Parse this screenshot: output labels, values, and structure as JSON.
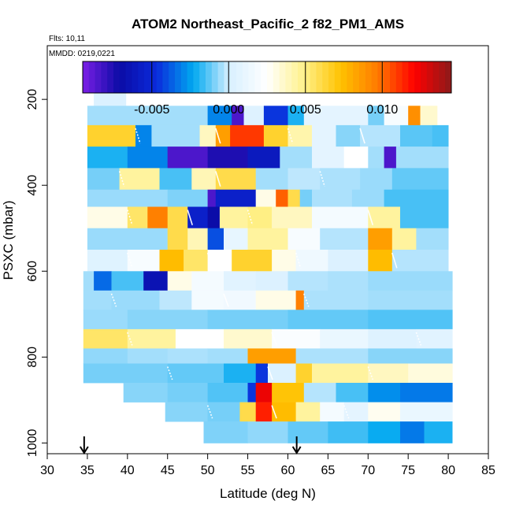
{
  "chart_data": {
    "type": "heatmap",
    "title": "ATOM2 Northeast_Pacific_2 f82_PM1_AMS",
    "flights_label": "Flts: 10,11",
    "dates_label": "MMDD: 0219,0221",
    "xlabel": "Latitude (deg N)",
    "ylabel": "PSXC (mbar)",
    "xlim": [
      30,
      85
    ],
    "ylim": [
      1025,
      75
    ],
    "x_ticks": [
      "30",
      "35",
      "40",
      "45",
      "50",
      "55",
      "60",
      "65",
      "70",
      "75",
      "80",
      "85"
    ],
    "y_ticks": [
      "200",
      "400",
      "600",
      "800",
      "1000"
    ],
    "colorbar": {
      "range": [
        -0.0095,
        0.0145
      ],
      "tick_values": [
        -0.005,
        0.0,
        0.005,
        0.01
      ],
      "tick_labels": [
        "-0.005",
        "0.000",
        "0.005",
        "0.010"
      ],
      "colors": [
        "#7b1fe6",
        "#0b0ba6",
        "#0b2bdb",
        "#00a8f0",
        "#d9f0ff",
        "#ffffff",
        "#fff18a",
        "#ffc200",
        "#ff7a00",
        "#ff0000",
        "#8b1a1a"
      ]
    },
    "arrow_markers_lat": [
      34.6,
      61.1
    ],
    "rows": [
      {
        "p_top": 175,
        "p_bot": 215,
        "segs": [
          [
            35.8,
            39.8,
            0.0002
          ]
        ]
      },
      {
        "p_top": 215,
        "p_bot": 260,
        "segs": [
          [
            35,
            50,
            -0.0005
          ],
          [
            50,
            53,
            -0.003
          ],
          [
            53,
            54.5,
            -0.0085
          ],
          [
            54.5,
            57,
            0.0004
          ],
          [
            57,
            60,
            -0.0045
          ],
          [
            60,
            62,
            -0.002
          ],
          [
            62,
            70,
            0.0008
          ],
          [
            70,
            72,
            -0.001
          ],
          [
            72,
            75,
            0.002
          ],
          [
            75,
            76.5,
            0.009
          ],
          [
            76.5,
            78.6,
            0.0035
          ]
        ]
      },
      {
        "p_top": 260,
        "p_bot": 310,
        "segs": [
          [
            35,
            41,
            0.0065
          ],
          [
            41,
            43,
            -0.003
          ],
          [
            43,
            49,
            -0.0005
          ],
          [
            49,
            51,
            0.0038
          ],
          [
            51,
            52.8,
            0.0085
          ],
          [
            52.8,
            57,
            0.011
          ],
          [
            57,
            60,
            0.0065
          ],
          [
            60,
            63,
            0.0042
          ],
          [
            63,
            66,
            0.0008
          ],
          [
            66,
            69,
            -0.0008
          ],
          [
            69,
            74,
            -0.0003
          ],
          [
            74,
            78,
            -0.0013
          ],
          [
            78,
            80,
            -0.0015
          ]
        ]
      },
      {
        "p_top": 310,
        "p_bot": 360,
        "segs": [
          [
            35,
            40,
            -0.002
          ],
          [
            40,
            45,
            -0.003
          ],
          [
            45,
            50,
            -0.0085
          ],
          [
            50,
            55,
            -0.0075
          ],
          [
            55,
            59,
            -0.006
          ],
          [
            59,
            63,
            -0.0005
          ],
          [
            63,
            67,
            0.0008
          ],
          [
            67,
            70,
            0.0025
          ],
          [
            70,
            72,
            -0.0005
          ],
          [
            72,
            73.5,
            -0.0085
          ],
          [
            73.5,
            80,
            -0.0005
          ]
        ]
      },
      {
        "p_top": 360,
        "p_bot": 410,
        "segs": [
          [
            35,
            39,
            -0.001
          ],
          [
            39,
            44,
            0.0045
          ],
          [
            44,
            48,
            -0.0015
          ],
          [
            48,
            51,
            0.004
          ],
          [
            51,
            56,
            0.006
          ],
          [
            56,
            60,
            -0.0005
          ],
          [
            60,
            64,
            -0.0002
          ],
          [
            64,
            69,
            -0.0004
          ],
          [
            69,
            73,
            -0.0006
          ],
          [
            73,
            80,
            -0.0012
          ]
        ]
      },
      {
        "p_top": 410,
        "p_bot": 450,
        "segs": [
          [
            35,
            45,
            -0.0006
          ],
          [
            45,
            50,
            -0.0009
          ],
          [
            50,
            51,
            -0.0085
          ],
          [
            51,
            56,
            -0.0055
          ],
          [
            56,
            58.5,
            0.003
          ],
          [
            58.5,
            60,
            0.0102
          ],
          [
            60,
            61.5,
            0.006
          ],
          [
            61.5,
            63,
            -0.001
          ],
          [
            63,
            68,
            -0.0004
          ],
          [
            68,
            72,
            -0.0006
          ],
          [
            72,
            80,
            -0.0015
          ]
        ]
      },
      {
        "p_top": 450,
        "p_bot": 500,
        "segs": [
          [
            35,
            40,
            0.003
          ],
          [
            40,
            42.5,
            0.0055
          ],
          [
            42.5,
            45,
            0.0095
          ],
          [
            45,
            47.5,
            0.006
          ],
          [
            47.5,
            50,
            -0.0055
          ],
          [
            50,
            51.5,
            -0.007
          ],
          [
            51.5,
            55,
            0.0045
          ],
          [
            55,
            58,
            0.005
          ],
          [
            58,
            63,
            0.0038
          ],
          [
            63,
            70,
            0.0018
          ],
          [
            70,
            74,
            0.0045
          ],
          [
            74,
            80,
            -0.0015
          ]
        ]
      },
      {
        "p_top": 500,
        "p_bot": 550,
        "segs": [
          [
            35,
            45,
            -0.0006
          ],
          [
            45,
            47.5,
            0.006
          ],
          [
            47.5,
            50,
            0.004
          ],
          [
            50,
            52,
            -0.004
          ],
          [
            52,
            55,
            0.001
          ],
          [
            55,
            60,
            0.0045
          ],
          [
            60,
            64,
            0.002
          ],
          [
            64,
            70,
            -0.0003
          ],
          [
            70,
            73,
            0.0085
          ],
          [
            73,
            76,
            0.0045
          ],
          [
            76,
            80,
            -0.0005
          ]
        ]
      },
      {
        "p_top": 550,
        "p_bot": 600,
        "segs": [
          [
            35,
            40,
            0.0005
          ],
          [
            40,
            44,
            0.002
          ],
          [
            44,
            47,
            0.0075
          ],
          [
            47,
            50,
            0.0055
          ],
          [
            50,
            53,
            0.0025
          ],
          [
            53,
            58,
            0.0065
          ],
          [
            58,
            61,
            0.003
          ],
          [
            61,
            65,
            0.0015
          ],
          [
            65,
            70,
            0.0003
          ],
          [
            70,
            73,
            0.0075
          ],
          [
            73,
            80,
            -0.0003
          ]
        ]
      },
      {
        "p_top": 600,
        "p_bot": 645,
        "segs": [
          [
            34.5,
            35.8,
            -0.0005
          ],
          [
            35.8,
            38,
            -0.0035
          ],
          [
            38,
            42,
            -0.0015
          ],
          [
            42,
            45,
            -0.0065
          ],
          [
            45,
            48,
            0.003
          ],
          [
            48,
            52,
            0.0018
          ],
          [
            52,
            56,
            0.0006
          ],
          [
            56,
            60,
            0.0003
          ],
          [
            60,
            65,
            -0.0003
          ],
          [
            65,
            70,
            -0.0004
          ],
          [
            70,
            80.5,
            -0.0006
          ]
        ]
      },
      {
        "p_top": 645,
        "p_bot": 690,
        "segs": [
          [
            34.5,
            38,
            -0.0005
          ],
          [
            38,
            44,
            -0.0006
          ],
          [
            44,
            48,
            -0.0002
          ],
          [
            48,
            52,
            0.0018
          ],
          [
            52,
            56,
            0.0016
          ],
          [
            56,
            61,
            0.003
          ],
          [
            61,
            62,
            0.0095
          ],
          [
            62,
            70,
            -0.0004
          ],
          [
            70,
            80.5,
            -0.0005
          ]
        ]
      },
      {
        "p_top": 690,
        "p_bot": 735,
        "segs": [
          [
            34.5,
            40,
            -0.0006
          ],
          [
            40,
            50,
            -0.0008
          ],
          [
            50,
            60,
            -0.001
          ],
          [
            60,
            70,
            -0.0012
          ],
          [
            70,
            80.5,
            -0.0014
          ]
        ]
      },
      {
        "p_top": 735,
        "p_bot": 780,
        "segs": [
          [
            34.5,
            40,
            0.0055
          ],
          [
            40,
            46,
            0.0045
          ],
          [
            46,
            52,
            0.0025
          ],
          [
            52,
            58,
            0.0035
          ],
          [
            58,
            64,
            0.0022
          ],
          [
            64,
            70,
            0.0012
          ],
          [
            70,
            76,
            0.0004
          ],
          [
            76,
            80.5,
            0.0006
          ]
        ]
      },
      {
        "p_top": 780,
        "p_bot": 815,
        "segs": [
          [
            34.5,
            40,
            -0.0007
          ],
          [
            40,
            45,
            -0.0005
          ],
          [
            45,
            50,
            -0.0004
          ],
          [
            50,
            55,
            -0.0005
          ],
          [
            55,
            61,
            0.0085
          ],
          [
            61,
            70,
            -0.0004
          ],
          [
            70,
            80.5,
            -0.0008
          ]
        ]
      },
      {
        "p_top": 815,
        "p_bot": 860,
        "segs": [
          [
            34.5,
            45,
            -0.001
          ],
          [
            45,
            52,
            -0.0012
          ],
          [
            52,
            56,
            -0.002
          ],
          [
            56,
            57.5,
            -0.0045
          ],
          [
            57.5,
            61,
            0.0002
          ],
          [
            61,
            63,
            0.0065
          ],
          [
            63,
            70,
            0.0045
          ],
          [
            70,
            75,
            0.0038
          ],
          [
            75,
            80.5,
            0.0032
          ]
        ]
      },
      {
        "p_top": 860,
        "p_bot": 905,
        "segs": [
          [
            39.5,
            45,
            -0.0008
          ],
          [
            45,
            50,
            -0.001
          ],
          [
            50,
            55,
            -0.0014
          ],
          [
            55,
            56,
            -0.0045
          ],
          [
            56,
            58,
            0.0125
          ],
          [
            58,
            62,
            0.0072
          ],
          [
            62,
            66,
            -0.0003
          ],
          [
            66,
            70,
            -0.0015
          ],
          [
            70,
            74,
            -0.0028
          ],
          [
            74,
            80.5,
            -0.0032
          ]
        ]
      },
      {
        "p_top": 905,
        "p_bot": 950,
        "segs": [
          [
            44.7,
            50,
            -0.0008
          ],
          [
            50,
            54,
            -0.001
          ],
          [
            54,
            56,
            0.006
          ],
          [
            56,
            58,
            0.0115
          ],
          [
            58,
            61,
            0.0075
          ],
          [
            61,
            64,
            0.0045
          ],
          [
            64,
            67,
            0.0018
          ],
          [
            67,
            70,
            0.0008
          ],
          [
            70,
            74,
            0.0028
          ],
          [
            74,
            80.5,
            0.0012
          ]
        ]
      },
      {
        "p_top": 950,
        "p_bot": 1000,
        "segs": [
          [
            49.5,
            55,
            -0.0009
          ],
          [
            55,
            60,
            -0.0007
          ],
          [
            60,
            65,
            -0.0012
          ],
          [
            65,
            70,
            -0.0016
          ],
          [
            70,
            74,
            -0.0022
          ],
          [
            74,
            77,
            -0.0032
          ],
          [
            77,
            80.5,
            -0.002
          ]
        ]
      }
    ]
  }
}
